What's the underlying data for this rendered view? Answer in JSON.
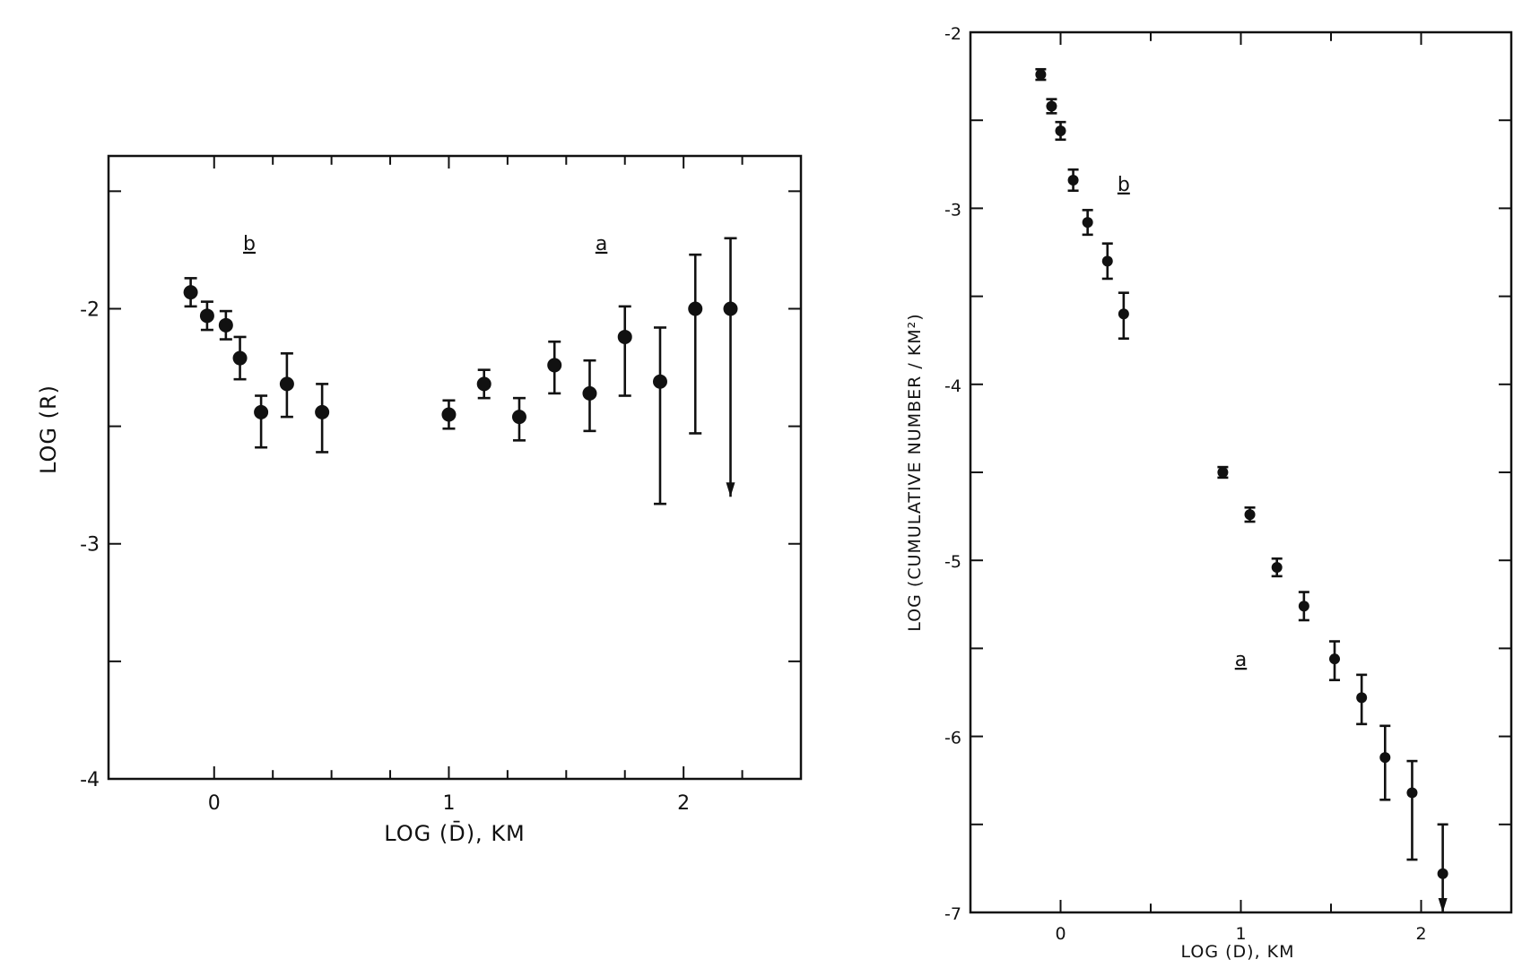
{
  "chart_data": [
    {
      "type": "scatter",
      "title": "",
      "xlabel": "LOG (D̄), KM",
      "ylabel": "LOG (R)",
      "xlim": [
        -0.45,
        2.5
      ],
      "ylim": [
        -4,
        -1.35
      ],
      "x_ticks": [
        0,
        1,
        2
      ],
      "x_tick_labels": [
        "0",
        "1",
        "2"
      ],
      "y_ticks": [
        -2,
        -3,
        -4
      ],
      "y_tick_labels": [
        "-2",
        "-3",
        "-4"
      ],
      "grid": false,
      "group_labels": [
        {
          "text": "b",
          "x": 0.15,
          "y": -1.75
        },
        {
          "text": "a",
          "x": 1.65,
          "y": -1.75
        }
      ],
      "series": [
        {
          "name": "b",
          "x": [
            -0.1,
            -0.03,
            0.05,
            0.11,
            0.2,
            0.31,
            0.46
          ],
          "y": [
            -1.93,
            -2.03,
            -2.07,
            -2.21,
            -2.44,
            -2.32,
            -2.44
          ],
          "err_low": [
            0.06,
            0.06,
            0.06,
            0.09,
            0.15,
            0.14,
            0.17
          ],
          "err_high": [
            0.06,
            0.06,
            0.06,
            0.09,
            0.07,
            0.13,
            0.12
          ]
        },
        {
          "name": "a",
          "x": [
            1.0,
            1.15,
            1.3,
            1.45,
            1.6,
            1.75,
            1.9,
            2.05,
            2.2
          ],
          "y": [
            -2.45,
            -2.32,
            -2.46,
            -2.24,
            -2.36,
            -2.12,
            -2.31,
            -2.0,
            -2.0
          ],
          "err_low": [
            0.06,
            0.06,
            0.1,
            0.12,
            0.16,
            0.25,
            0.52,
            0.53,
            0.0
          ],
          "err_high": [
            0.06,
            0.06,
            0.08,
            0.1,
            0.14,
            0.13,
            0.23,
            0.23,
            0.3
          ],
          "upper_limit_arrow": [
            false,
            false,
            false,
            false,
            false,
            false,
            false,
            false,
            true
          ],
          "arrow_to": -2.8
        }
      ]
    },
    {
      "type": "scatter",
      "title": "",
      "xlabel": "LOG (D), KM",
      "ylabel": "LOG (CUMULATIVE NUMBER / KM²)",
      "xlim": [
        -0.5,
        2.5
      ],
      "ylim": [
        -7,
        -2
      ],
      "x_ticks": [
        0,
        1,
        2
      ],
      "x_tick_labels": [
        "0",
        "1",
        "2"
      ],
      "y_ticks": [
        -2,
        -3,
        -4,
        -5,
        -6,
        -7
      ],
      "y_tick_labels": [
        "-2",
        "-3",
        "-4",
        "-5",
        "-6",
        "-7"
      ],
      "grid": false,
      "group_labels": [
        {
          "text": "b",
          "x": 0.35,
          "y": -2.9
        },
        {
          "text": "a",
          "x": 1.0,
          "y": -5.6
        }
      ],
      "series": [
        {
          "name": "b",
          "x": [
            -0.11,
            -0.05,
            0.0,
            0.07,
            0.15,
            0.26,
            0.35
          ],
          "y": [
            -2.24,
            -2.42,
            -2.56,
            -2.84,
            -3.08,
            -3.3,
            -3.6
          ],
          "err_low": [
            0.03,
            0.04,
            0.05,
            0.06,
            0.07,
            0.1,
            0.14
          ],
          "err_high": [
            0.03,
            0.04,
            0.05,
            0.06,
            0.07,
            0.1,
            0.12
          ]
        },
        {
          "name": "a",
          "x": [
            0.9,
            1.05,
            1.2,
            1.35,
            1.52,
            1.67,
            1.8,
            1.95,
            2.12
          ],
          "y": [
            -4.5,
            -4.74,
            -5.04,
            -5.26,
            -5.56,
            -5.78,
            -6.12,
            -6.32,
            -6.78
          ],
          "err_low": [
            0.03,
            0.04,
            0.05,
            0.08,
            0.12,
            0.15,
            0.24,
            0.38,
            0.0
          ],
          "err_high": [
            0.03,
            0.04,
            0.05,
            0.08,
            0.1,
            0.13,
            0.18,
            0.18,
            0.28
          ],
          "upper_limit_arrow": [
            false,
            false,
            false,
            false,
            false,
            false,
            false,
            false,
            true
          ],
          "arrow_to": -7.0
        }
      ]
    }
  ]
}
